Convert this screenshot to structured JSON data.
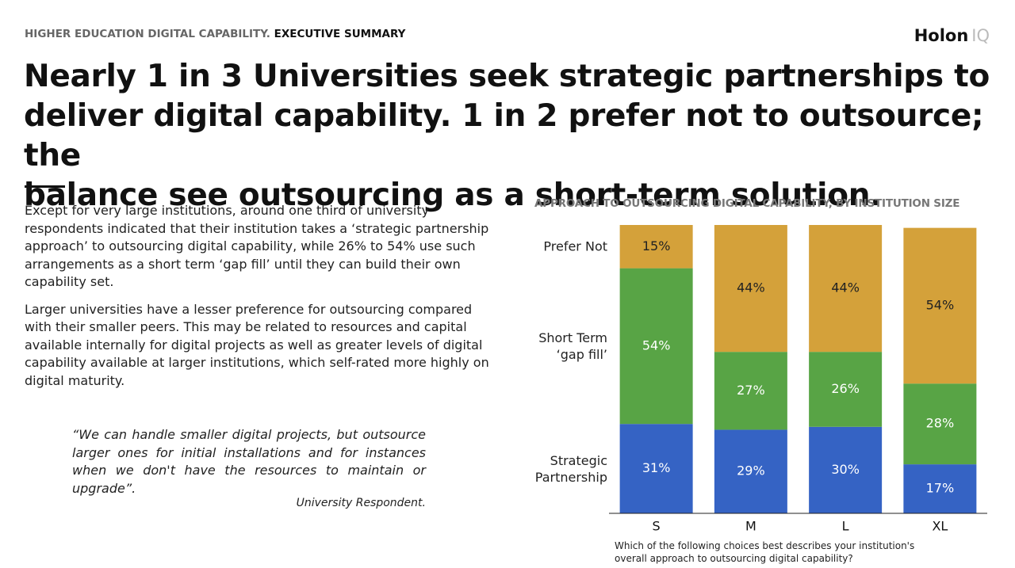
{
  "header": {
    "section": "HIGHER EDUCATION DIGITAL CAPABILITY.",
    "subsection": "EXECUTIVE SUMMARY",
    "logo": "Holon",
    "logo_suffix": "IQ"
  },
  "headline": [
    "Nearly 1 in 3 Universities seek strategic partnerships to",
    "deliver digital capability. 1 in 2 prefer not to outsource; the",
    "balance see outsourcing as a short-term solution."
  ],
  "body": {
    "paragraphs": [
      "Except for very large institutions, around one third of university respondents indicated that their institution takes a ‘strategic partnership approach’ to outsourcing digital capability, while 26% to 54% use such arrangements as a short term ‘gap fill’ until they can build their own capability set.",
      "Larger universities have a lesser preference for outsourcing compared with their smaller peers. This may be related to resources and capital available internally for digital projects as well as greater levels of digital capability available at larger institutions, which self-rated more highly on digital maturity."
    ],
    "quote": "“We can handle smaller digital projects, but outsource larger ones for initial installations and for instances when we don't have the resources to maintain or upgrade”.",
    "attribution": "University Respondent."
  },
  "chart_data": {
    "type": "stacked_bar",
    "title": "APPROACH TO OUTSOURCING DIGITAL CAPABILITY, BY INSTITUTION SIZE",
    "categories": [
      "S",
      "M",
      "L",
      "XL"
    ],
    "series": [
      {
        "name": "Strategic Partnership",
        "color": "#3563c4",
        "values": [
          31,
          29,
          30,
          17
        ],
        "value_labels": [
          "31%",
          "29%",
          "30%",
          "17%"
        ]
      },
      {
        "name": "Short Term ‘gap fill’",
        "color": "#58a445",
        "values": [
          54,
          27,
          26,
          28
        ],
        "value_labels": [
          "54%",
          "27%",
          "26%",
          "28%"
        ]
      },
      {
        "name": "Prefer Not",
        "color": "#d4a13a",
        "values": [
          15,
          44,
          44,
          54
        ],
        "value_labels": [
          "15%",
          "44%",
          "44%",
          "54%"
        ]
      }
    ],
    "ylim": [
      0,
      100
    ],
    "note": "Which of the following choices best describes your institution's overall approach to outsourcing digital capability?"
  }
}
